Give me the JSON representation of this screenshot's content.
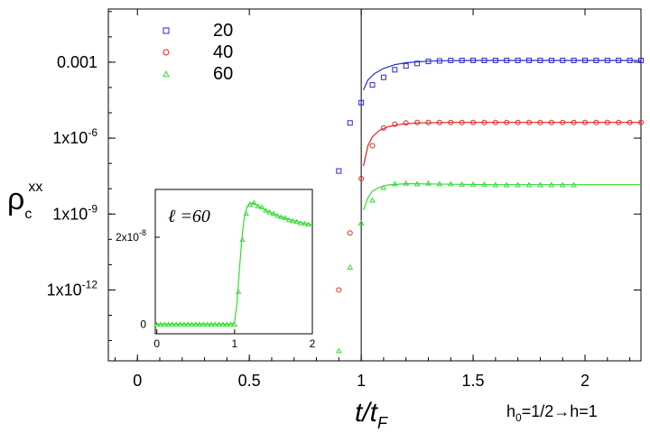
{
  "chart_data": [
    {
      "type": "scatter",
      "id": "main",
      "yscale": "log",
      "xlim": [
        -0.13,
        2.25
      ],
      "ylim_log10": [
        -14.8,
        -0.9
      ],
      "x_ticks": [
        0,
        0.5,
        1,
        1.5,
        2
      ],
      "x_tick_labels": [
        "0",
        "0.5",
        "1",
        "1.5",
        "2"
      ],
      "y_ticks_log10": [
        -3,
        -6,
        -9,
        -12
      ],
      "y_tick_labels": [
        {
          "mant": "0.001",
          "exp": ""
        },
        {
          "mant": "1x10",
          "exp": "-6"
        },
        {
          "mant": "1x10",
          "exp": "-9"
        },
        {
          "mant": "1x10",
          "exp": "-12"
        }
      ],
      "ylabel": {
        "base": "ρ",
        "sub": "c",
        "sup": "xx"
      },
      "xlabel": {
        "base": "t/t",
        "sub": "F"
      },
      "annotation": {
        "prefix": "h",
        "sub": "0",
        "suffix": "=1/2→h=1"
      },
      "vline_x": 1,
      "series": [
        {
          "name": "20",
          "color": "#2a2acc",
          "marker": "square",
          "points": [
            [
              0.9,
              -7.3
            ],
            [
              0.95,
              -5.4
            ],
            [
              1.0,
              -4.6
            ],
            [
              1.05,
              -3.9
            ],
            [
              1.1,
              -3.6
            ],
            [
              1.15,
              -3.3
            ],
            [
              1.2,
              -3.15
            ],
            [
              1.25,
              -3.05
            ],
            [
              1.3,
              -2.97
            ],
            [
              1.35,
              -2.95
            ],
            [
              1.4,
              -2.93
            ],
            [
              1.45,
              -2.93
            ],
            [
              1.5,
              -2.93
            ],
            [
              1.55,
              -2.93
            ],
            [
              1.6,
              -2.93
            ],
            [
              1.65,
              -2.93
            ],
            [
              1.7,
              -2.93
            ],
            [
              1.75,
              -2.93
            ],
            [
              1.8,
              -2.93
            ],
            [
              1.85,
              -2.93
            ],
            [
              1.9,
              -2.93
            ],
            [
              1.95,
              -2.93
            ],
            [
              2.0,
              -2.93
            ],
            [
              2.05,
              -2.93
            ],
            [
              2.1,
              -2.93
            ],
            [
              2.15,
              -2.93
            ],
            [
              2.2,
              -2.93
            ],
            [
              2.25,
              -2.93
            ]
          ],
          "curve": [
            [
              1.01,
              -4.1
            ],
            [
              1.03,
              -3.7
            ],
            [
              1.06,
              -3.45
            ],
            [
              1.1,
              -3.25
            ],
            [
              1.15,
              -3.1
            ],
            [
              1.2,
              -3.02
            ],
            [
              1.3,
              -2.96
            ],
            [
              1.4,
              -2.94
            ],
            [
              1.5,
              -2.93
            ],
            [
              1.75,
              -2.93
            ],
            [
              2.0,
              -2.93
            ],
            [
              2.25,
              -2.93
            ]
          ]
        },
        {
          "name": "40",
          "color": "#dd2222",
          "marker": "circle",
          "points": [
            [
              0.9,
              -12.0
            ],
            [
              0.95,
              -9.75
            ],
            [
              1.0,
              -7.6
            ],
            [
              1.05,
              -6.3
            ],
            [
              1.1,
              -5.6
            ],
            [
              1.15,
              -5.45
            ],
            [
              1.2,
              -5.4
            ],
            [
              1.25,
              -5.38
            ],
            [
              1.3,
              -5.38
            ],
            [
              1.35,
              -5.38
            ],
            [
              1.4,
              -5.38
            ],
            [
              1.45,
              -5.38
            ],
            [
              1.5,
              -5.38
            ],
            [
              1.55,
              -5.38
            ],
            [
              1.6,
              -5.38
            ],
            [
              1.65,
              -5.38
            ],
            [
              1.7,
              -5.38
            ],
            [
              1.75,
              -5.38
            ],
            [
              1.8,
              -5.38
            ],
            [
              1.85,
              -5.38
            ],
            [
              1.9,
              -5.38
            ],
            [
              1.95,
              -5.38
            ],
            [
              2.0,
              -5.38
            ],
            [
              2.05,
              -5.38
            ],
            [
              2.1,
              -5.38
            ],
            [
              2.15,
              -5.38
            ],
            [
              2.2,
              -5.38
            ],
            [
              2.25,
              -5.38
            ]
          ],
          "curve": [
            [
              1.01,
              -7.1
            ],
            [
              1.03,
              -6.3
            ],
            [
              1.05,
              -5.95
            ],
            [
              1.08,
              -5.7
            ],
            [
              1.12,
              -5.55
            ],
            [
              1.18,
              -5.45
            ],
            [
              1.25,
              -5.4
            ],
            [
              1.4,
              -5.38
            ],
            [
              1.6,
              -5.38
            ],
            [
              2.0,
              -5.38
            ],
            [
              2.25,
              -5.38
            ]
          ]
        },
        {
          "name": "60",
          "color": "#33dd33",
          "marker": "triangle",
          "points": [
            [
              0.9,
              -14.4
            ],
            [
              0.95,
              -11.1
            ],
            [
              1.0,
              -9.35
            ],
            [
              1.05,
              -8.45
            ],
            [
              1.1,
              -7.95
            ],
            [
              1.15,
              -7.8
            ],
            [
              1.2,
              -7.78
            ],
            [
              1.25,
              -7.8
            ],
            [
              1.3,
              -7.78
            ],
            [
              1.35,
              -7.8
            ],
            [
              1.4,
              -7.8
            ],
            [
              1.45,
              -7.82
            ],
            [
              1.5,
              -7.82
            ],
            [
              1.55,
              -7.82
            ],
            [
              1.6,
              -7.84
            ],
            [
              1.65,
              -7.84
            ],
            [
              1.7,
              -7.84
            ],
            [
              1.75,
              -7.84
            ],
            [
              1.8,
              -7.84
            ],
            [
              1.85,
              -7.84
            ],
            [
              1.9,
              -7.84
            ],
            [
              1.95,
              -7.84
            ]
          ],
          "curve": [
            [
              1.01,
              -8.85
            ],
            [
              1.03,
              -8.35
            ],
            [
              1.05,
              -8.1
            ],
            [
              1.08,
              -7.95
            ],
            [
              1.12,
              -7.85
            ],
            [
              1.2,
              -7.8
            ],
            [
              1.4,
              -7.82
            ],
            [
              1.6,
              -7.84
            ],
            [
              2.0,
              -7.84
            ],
            [
              2.25,
              -7.84
            ]
          ]
        }
      ]
    },
    {
      "type": "scatter",
      "id": "inset",
      "yscale": "linear",
      "title": "ℓ =60",
      "xlim": [
        -0.02,
        2.0
      ],
      "ylim": [
        -2.2e-09,
        3.1e-08
      ],
      "x_ticks": [
        0,
        1,
        2
      ],
      "x_tick_labels": [
        "0",
        "1",
        "2"
      ],
      "y_ticks": [
        0,
        2e-08
      ],
      "y_tick_labels": [
        {
          "mant": "0",
          "exp": ""
        },
        {
          "mant": "2x10",
          "exp": "-8"
        }
      ],
      "series": [
        {
          "name": "60",
          "color": "#33dd33",
          "marker": "triangle",
          "points": [
            [
              0,
              0
            ],
            [
              0.05,
              0
            ],
            [
              0.1,
              0
            ],
            [
              0.15,
              0
            ],
            [
              0.2,
              0
            ],
            [
              0.25,
              0
            ],
            [
              0.3,
              0
            ],
            [
              0.35,
              0
            ],
            [
              0.4,
              0
            ],
            [
              0.45,
              0
            ],
            [
              0.5,
              0
            ],
            [
              0.55,
              0
            ],
            [
              0.6,
              0
            ],
            [
              0.65,
              0
            ],
            [
              0.7,
              0
            ],
            [
              0.75,
              0
            ],
            [
              0.8,
              0
            ],
            [
              0.85,
              0
            ],
            [
              0.9,
              0
            ],
            [
              0.95,
              0
            ],
            [
              1.0,
              0.0
            ],
            [
              1.05,
              7.5e-09
            ],
            [
              1.1,
              1.95e-08
            ],
            [
              1.15,
              2.55e-08
            ],
            [
              1.2,
              2.75e-08
            ],
            [
              1.25,
              2.8e-08
            ],
            [
              1.3,
              2.72e-08
            ],
            [
              1.35,
              2.7e-08
            ],
            [
              1.4,
              2.62e-08
            ],
            [
              1.45,
              2.58e-08
            ],
            [
              1.5,
              2.55e-08
            ],
            [
              1.55,
              2.5e-08
            ],
            [
              1.6,
              2.47e-08
            ],
            [
              1.65,
              2.45e-08
            ],
            [
              1.7,
              2.4e-08
            ],
            [
              1.75,
              2.38e-08
            ],
            [
              1.8,
              2.36e-08
            ],
            [
              1.85,
              2.33e-08
            ],
            [
              1.9,
              2.32e-08
            ],
            [
              1.95,
              2.3e-08
            ]
          ],
          "curve": [
            [
              0,
              0
            ],
            [
              0.9,
              0
            ],
            [
              0.97,
              0
            ],
            [
              1.0,
              5e-10
            ],
            [
              1.03,
              4.5e-09
            ],
            [
              1.06,
              1.2e-08
            ],
            [
              1.09,
              1.9e-08
            ],
            [
              1.12,
              2.4e-08
            ],
            [
              1.16,
              2.7e-08
            ],
            [
              1.2,
              2.8e-08
            ],
            [
              1.25,
              2.78e-08
            ],
            [
              1.3,
              2.72e-08
            ],
            [
              1.4,
              2.62e-08
            ],
            [
              1.5,
              2.54e-08
            ],
            [
              1.6,
              2.47e-08
            ],
            [
              1.7,
              2.41e-08
            ],
            [
              1.8,
              2.36e-08
            ],
            [
              1.9,
              2.32e-08
            ],
            [
              2.0,
              2.29e-08
            ]
          ]
        }
      ]
    }
  ]
}
